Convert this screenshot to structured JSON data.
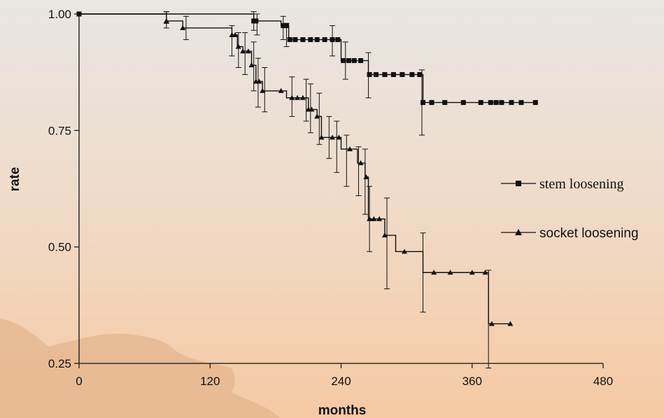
{
  "chart_data": {
    "type": "line",
    "xlabel": "months",
    "ylabel": "rate",
    "xlim": [
      0,
      480
    ],
    "ylim": [
      0.25,
      1.0
    ],
    "x_ticks": [
      0,
      120,
      240,
      360,
      480
    ],
    "x_tick_labels": [
      "0",
      "120",
      "240",
      "360",
      "480"
    ],
    "y_ticks": [
      0.25,
      0.5,
      0.75,
      1.0
    ],
    "y_tick_labels": [
      "0.25",
      "0.50",
      "0.75",
      "1.00"
    ],
    "grid": false,
    "legend_position": "right",
    "series": [
      {
        "name": "stem loosening",
        "marker": "square",
        "color": "#111111",
        "x": [
          0,
          160,
          185,
          192,
          230,
          240,
          265,
          315,
          330,
          420
        ],
        "y": [
          1.0,
          0.985,
          0.975,
          0.945,
          0.945,
          0.9,
          0.87,
          0.81,
          0.81,
          0.81
        ],
        "markers_x": [
          0,
          160,
          162,
          187,
          190,
          193,
          198,
          205,
          212,
          218,
          225,
          232,
          237,
          242,
          247,
          252,
          258,
          266,
          272,
          280,
          288,
          296,
          305,
          312,
          315,
          323,
          335,
          352,
          368,
          377,
          382,
          387,
          396,
          405,
          418
        ],
        "error_bars": [
          {
            "x": 80,
            "low": 0.98,
            "high": 1.005
          },
          {
            "x": 160,
            "low": 0.965,
            "high": 1.005
          },
          {
            "x": 163,
            "low": 0.955,
            "high": 1.0
          },
          {
            "x": 187,
            "low": 0.945,
            "high": 0.995
          },
          {
            "x": 190,
            "low": 0.93,
            "high": 0.98
          },
          {
            "x": 232,
            "low": 0.91,
            "high": 0.975
          },
          {
            "x": 244,
            "low": 0.86,
            "high": 0.94
          },
          {
            "x": 265,
            "low": 0.82,
            "high": 0.917
          },
          {
            "x": 314,
            "low": 0.74,
            "high": 0.88
          }
        ]
      },
      {
        "name": "socket loosening",
        "marker": "triangle",
        "color": "#111111",
        "x": [
          0,
          80,
          95,
          140,
          145,
          150,
          158,
          162,
          168,
          190,
          205,
          210,
          218,
          222,
          240,
          255,
          262,
          265,
          280,
          290,
          315,
          350,
          370,
          375,
          395
        ],
        "y": [
          1.0,
          0.985,
          0.97,
          0.955,
          0.93,
          0.92,
          0.89,
          0.855,
          0.835,
          0.82,
          0.82,
          0.795,
          0.78,
          0.735,
          0.71,
          0.68,
          0.65,
          0.56,
          0.525,
          0.49,
          0.445,
          0.445,
          0.445,
          0.335,
          0.335
        ],
        "markers_x": [
          0,
          80,
          95,
          140,
          143,
          146,
          150,
          155,
          158,
          162,
          165,
          168,
          185,
          195,
          200,
          205,
          210,
          213,
          218,
          222,
          232,
          238,
          248,
          258,
          263,
          266,
          270,
          275,
          280,
          298,
          325,
          340,
          360,
          372,
          378,
          395
        ],
        "error_bars": [
          {
            "x": 80,
            "low": 0.97,
            "high": 1.005
          },
          {
            "x": 98,
            "low": 0.945,
            "high": 0.995
          },
          {
            "x": 140,
            "low": 0.91,
            "high": 0.975
          },
          {
            "x": 146,
            "low": 0.885,
            "high": 0.96
          },
          {
            "x": 152,
            "low": 0.87,
            "high": 0.96
          },
          {
            "x": 160,
            "low": 0.835,
            "high": 0.94
          },
          {
            "x": 164,
            "low": 0.8,
            "high": 0.905
          },
          {
            "x": 170,
            "low": 0.79,
            "high": 0.885
          },
          {
            "x": 195,
            "low": 0.78,
            "high": 0.865
          },
          {
            "x": 208,
            "low": 0.77,
            "high": 0.86
          },
          {
            "x": 212,
            "low": 0.745,
            "high": 0.85
          },
          {
            "x": 220,
            "low": 0.72,
            "high": 0.83
          },
          {
            "x": 229,
            "low": 0.69,
            "high": 0.78
          },
          {
            "x": 236,
            "low": 0.66,
            "high": 0.77
          },
          {
            "x": 245,
            "low": 0.63,
            "high": 0.74
          },
          {
            "x": 256,
            "low": 0.61,
            "high": 0.715
          },
          {
            "x": 262,
            "low": 0.57,
            "high": 0.71
          },
          {
            "x": 266,
            "low": 0.49,
            "high": 0.63
          },
          {
            "x": 282,
            "low": 0.41,
            "high": 0.605
          },
          {
            "x": 315,
            "low": 0.36,
            "high": 0.53
          },
          {
            "x": 375,
            "low": 0.24,
            "high": 0.45
          }
        ]
      }
    ]
  }
}
